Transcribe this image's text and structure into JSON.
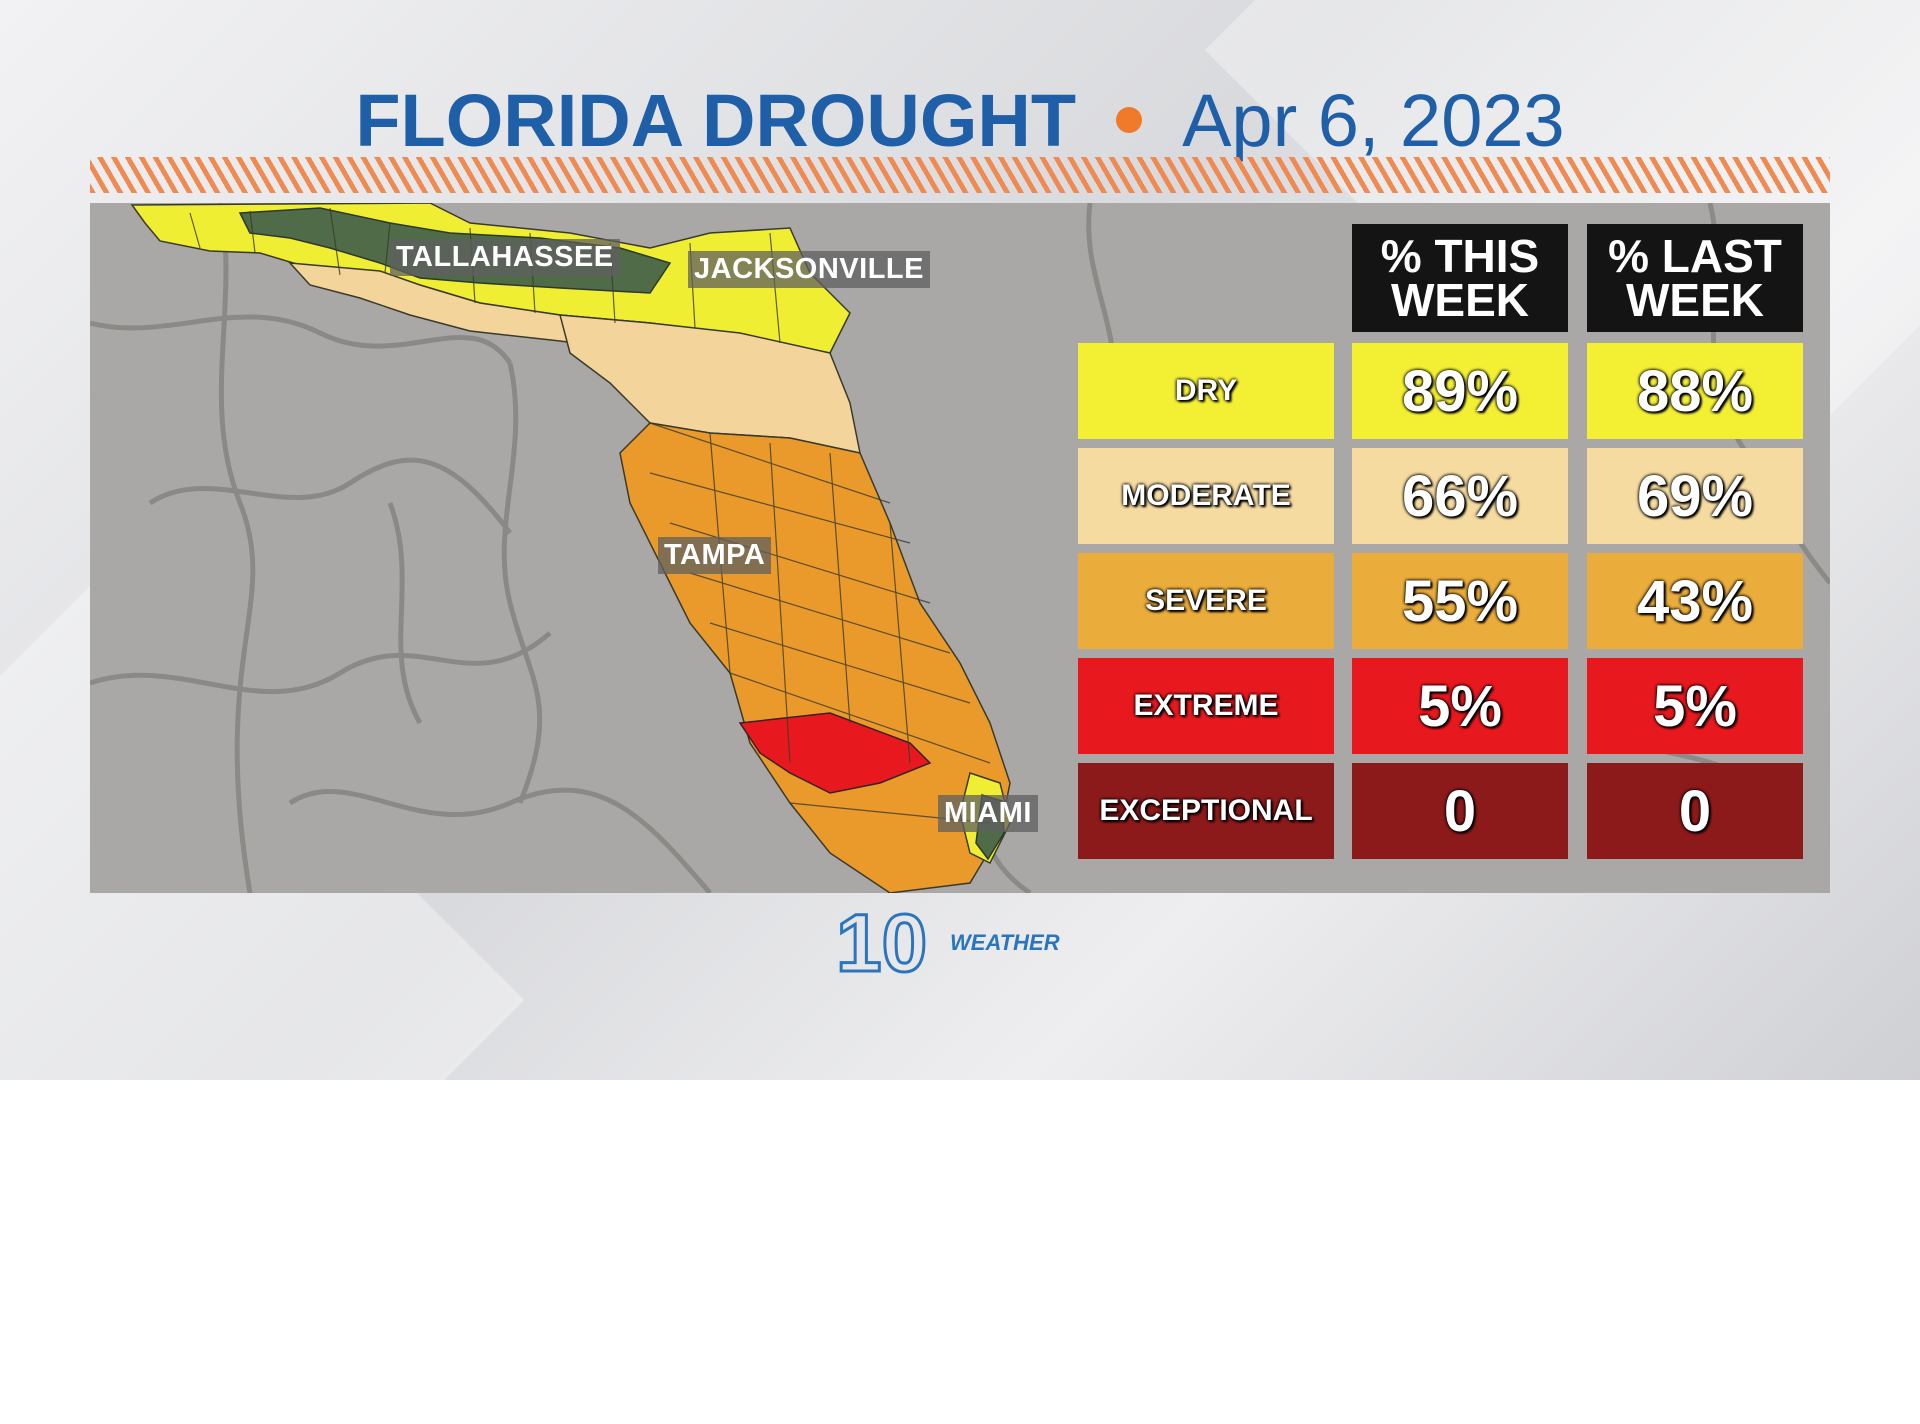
{
  "header": {
    "title": "FLORIDA DROUGHT",
    "date": "Apr 6, 2023"
  },
  "cities": {
    "tallahassee": "TALLAHASSEE",
    "jacksonville": "JACKSONVILLE",
    "tampa": "TAMPA",
    "miami": "MIAMI"
  },
  "table": {
    "col_this_week": [
      "% THIS",
      "WEEK"
    ],
    "col_last_week": [
      "% LAST",
      "WEEK"
    ],
    "rows": [
      {
        "label": "DRY",
        "this_week": "89%",
        "last_week": "88%",
        "color": "#f3f033"
      },
      {
        "label": "MODERATE",
        "this_week": "66%",
        "last_week": "69%",
        "color": "#f5dba0"
      },
      {
        "label": "SEVERE",
        "this_week": "55%",
        "last_week": "43%",
        "color": "#eaac3a"
      },
      {
        "label": "EXTREME",
        "this_week": "5%",
        "last_week": "5%",
        "color": "#e8191e"
      },
      {
        "label": "EXCEPTIONAL",
        "this_week": "0",
        "last_week": "0",
        "color": "#8c1a1b"
      }
    ]
  },
  "logo": {
    "number": "10",
    "text": "WEATHER"
  },
  "colors": {
    "title_blue": "#1f5fa8",
    "accent_orange": "#f07a2a",
    "abnormally_dry_green": "#4d6b47"
  }
}
